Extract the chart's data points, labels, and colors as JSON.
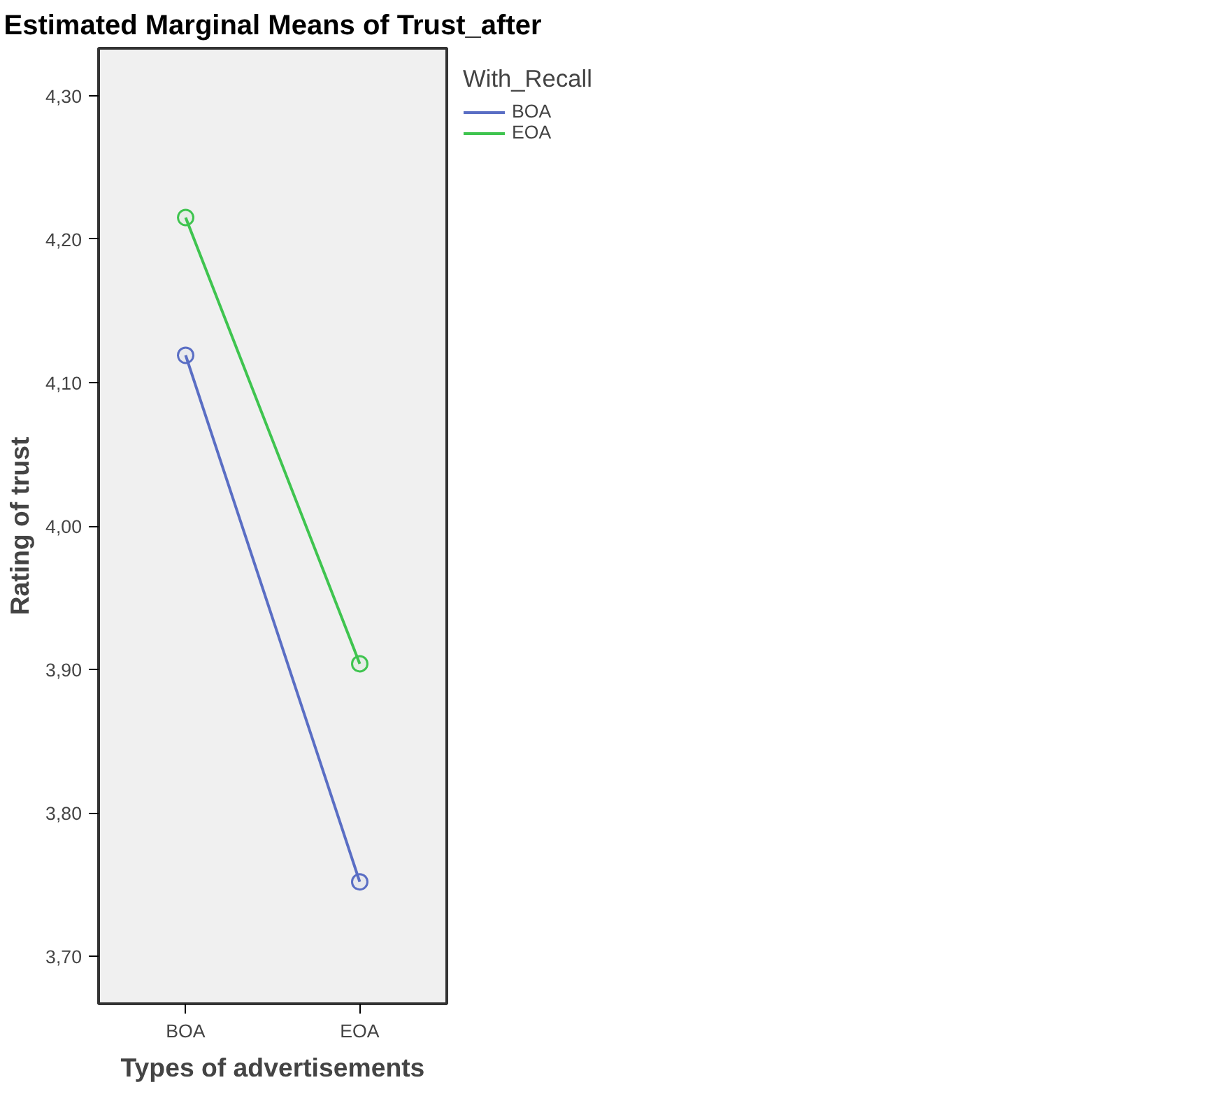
{
  "chart_data": {
    "type": "line",
    "title": "Estimated Marginal Means of Trust_after",
    "xlabel": "Types of advertisements",
    "ylabel": "Rating of trust",
    "legend_title": "With_Recall",
    "categories": [
      "BOA",
      "EOA"
    ],
    "series": [
      {
        "name": "BOA",
        "color": "#5a6ec4",
        "values": [
          4.119,
          3.752
        ]
      },
      {
        "name": "EOA",
        "color": "#3fc44f",
        "values": [
          4.215,
          3.904
        ]
      }
    ],
    "ylim": [
      3.667,
      4.333
    ],
    "yticks": [
      {
        "value": 3.7,
        "label": "3,70"
      },
      {
        "value": 3.8,
        "label": "3,80"
      },
      {
        "value": 3.9,
        "label": "3,90"
      },
      {
        "value": 4.0,
        "label": "4,00"
      },
      {
        "value": 4.1,
        "label": "4,10"
      },
      {
        "value": 4.2,
        "label": "4,20"
      },
      {
        "value": 4.3,
        "label": "4,30"
      }
    ],
    "grid": false,
    "legend": "right",
    "marker": "circle",
    "line_style": "solid"
  }
}
